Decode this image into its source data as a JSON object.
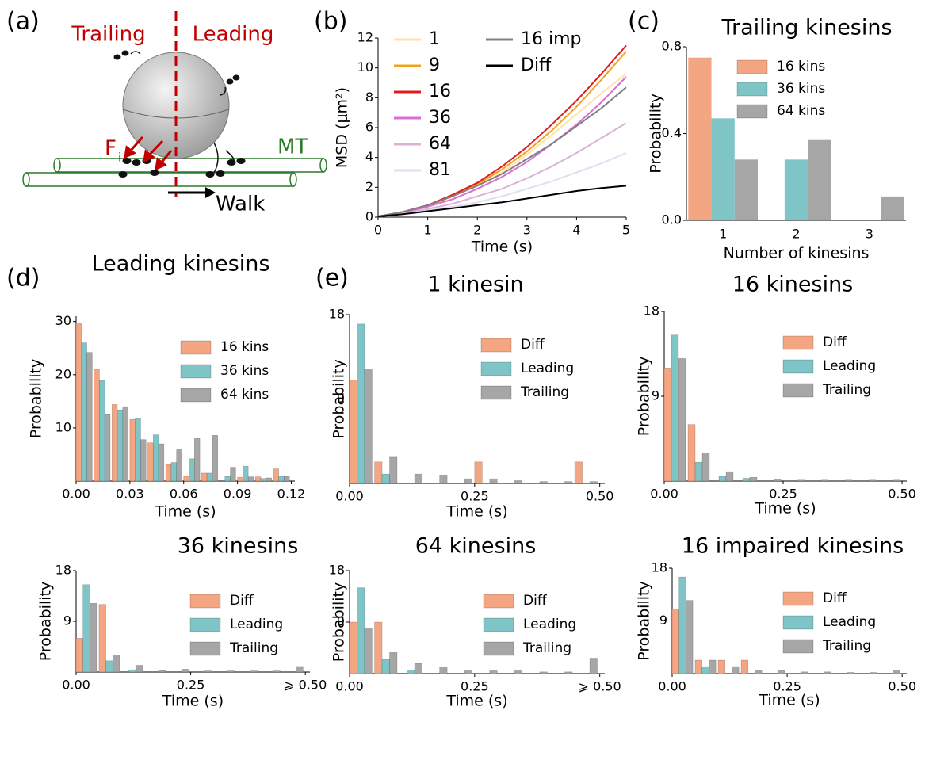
{
  "diagram": {
    "label": "(a)",
    "trailing": "Trailing",
    "leading": "Leading",
    "force": "F",
    "force_sub": "i",
    "mt": "MT",
    "walk": "Walk"
  },
  "chart_data": [
    {
      "type": "line",
      "label": "(b)",
      "x_label": "Time (s)",
      "y_label": "MSD (μm²)",
      "x": [
        0,
        0.5,
        1,
        1.5,
        2,
        2.5,
        3,
        3.5,
        4,
        4.5,
        5
      ],
      "xlim": [
        0,
        5
      ],
      "xticks": [
        0,
        1,
        2,
        3,
        4,
        5
      ],
      "ylim": [
        0,
        12
      ],
      "yticks": [
        0,
        2,
        4,
        6,
        8,
        10,
        12
      ],
      "series": [
        {
          "name": "1",
          "color": "#fde2ad",
          "values": [
            0.05,
            0.35,
            0.75,
            1.4,
            2.1,
            3.0,
            4.2,
            5.5,
            6.9,
            8.3,
            9.6
          ]
        },
        {
          "name": "9",
          "color": "#f0a41c",
          "values": [
            0.05,
            0.35,
            0.75,
            1.4,
            2.2,
            3.2,
            4.4,
            5.8,
            7.4,
            9.2,
            11.1
          ]
        },
        {
          "name": "16",
          "color": "#e31a1c",
          "values": [
            0.05,
            0.35,
            0.8,
            1.5,
            2.3,
            3.4,
            4.7,
            6.2,
            7.8,
            9.6,
            11.5
          ]
        },
        {
          "name": "36",
          "color": "#d86fd2",
          "values": [
            0.05,
            0.3,
            0.7,
            1.2,
            1.9,
            2.7,
            3.7,
            4.9,
            6.2,
            7.7,
            9.4
          ]
        },
        {
          "name": "64",
          "color": "#d9b2d4",
          "values": [
            0.05,
            0.25,
            0.55,
            0.9,
            1.4,
            1.9,
            2.6,
            3.4,
            4.3,
            5.3,
            6.3
          ]
        },
        {
          "name": "81",
          "color": "#e3ddf2",
          "values": [
            0.05,
            0.2,
            0.45,
            0.7,
            1.0,
            1.4,
            1.9,
            2.4,
            3.0,
            3.6,
            4.3
          ]
        },
        {
          "name": "16 imp",
          "color": "#808080",
          "values": [
            0.05,
            0.35,
            0.8,
            1.4,
            2.1,
            2.9,
            3.9,
            4.9,
            6.1,
            7.3,
            8.7
          ]
        },
        {
          "name": "Diff",
          "color": "#000000",
          "values": [
            0.05,
            0.2,
            0.4,
            0.6,
            0.8,
            1.0,
            1.25,
            1.5,
            1.75,
            1.95,
            2.1
          ]
        }
      ]
    },
    {
      "type": "bar",
      "label": "(c)",
      "title": "Trailing kinesins",
      "x_label": "Number of kinesins",
      "y_label": "Probability",
      "categories": [
        "1",
        "2",
        "3"
      ],
      "ylim": [
        0,
        0.8
      ],
      "yticks": [
        {
          "value": 0,
          "label": "0.0"
        },
        0.4,
        0.8
      ],
      "series": [
        {
          "name": "16 kins",
          "color": "#f4a582",
          "values": [
            0.75,
            0,
            0
          ]
        },
        {
          "name": "36 kins",
          "color": "#7fc4c6",
          "values": [
            0.47,
            0.28,
            0
          ]
        },
        {
          "name": "64 kins",
          "color": "#a6a6a6",
          "values": [
            0.28,
            0.37,
            0.11
          ]
        }
      ]
    },
    {
      "type": "histogram",
      "label": "(d)",
      "title": "Leading kinesins",
      "x_label": "Time (s)",
      "y_label": "Probability",
      "bins": [
        0,
        0.01,
        0.02,
        0.03,
        0.04,
        0.05,
        0.06,
        0.07,
        0.08,
        0.09,
        0.1,
        0.11,
        0.12
      ],
      "xlim": [
        0,
        0.122
      ],
      "xticks": [
        {
          "value": 0,
          "label": "0.00"
        },
        0.03,
        0.06,
        0.09,
        0.12
      ],
      "ylim": [
        0,
        31
      ],
      "yticks": [
        10,
        20,
        30
      ],
      "series": [
        {
          "name": "16 kins",
          "color": "#f4a582",
          "values": [
            29.7,
            21,
            14.4,
            11.6,
            7.2,
            3.1,
            0.9,
            1.5,
            0,
            0.7,
            0.8,
            2.3
          ]
        },
        {
          "name": "36 kins",
          "color": "#7fc4c6",
          "values": [
            26,
            18.9,
            13.4,
            11.8,
            8.7,
            3.5,
            4.2,
            1.5,
            0.9,
            2.8,
            0.5,
            0.9
          ]
        },
        {
          "name": "64 kins",
          "color": "#a6a6a6",
          "values": [
            24.2,
            12.5,
            14,
            7.8,
            7.0,
            5.9,
            8.0,
            8.6,
            2.6,
            0.8,
            0.6,
            0.9
          ]
        }
      ]
    },
    {
      "type": "histogram",
      "label": "(e)",
      "title": "1 kinesin",
      "x_label": "Time (s)",
      "y_label": "Probability",
      "bins": [
        0,
        0.05,
        0.1,
        0.15,
        0.2,
        0.25,
        0.3,
        0.35,
        0.4,
        0.45,
        0.5
      ],
      "xlim": [
        0,
        0.51
      ],
      "xticks": [
        {
          "value": 0,
          "label": "0.00"
        },
        0.25,
        {
          "value": 0.5,
          "label": "0.50"
        }
      ],
      "ylim": [
        0,
        18
      ],
      "yticks": [
        9,
        18
      ],
      "series": [
        {
          "name": "Diff",
          "color": "#f4a582",
          "values": [
            11,
            2.3,
            0,
            0,
            0,
            2.3,
            0,
            0,
            0,
            2.3
          ]
        },
        {
          "name": "Leading",
          "color": "#7fc4c6",
          "values": [
            17,
            1,
            0,
            0,
            0,
            0,
            0,
            0,
            0,
            0
          ]
        },
        {
          "name": "Trailing",
          "color": "#a6a6a6",
          "values": [
            12.2,
            2.8,
            1,
            0.9,
            0.5,
            0.5,
            0.3,
            0.2,
            0.2,
            0.2
          ]
        }
      ]
    },
    {
      "type": "histogram",
      "title": "16 kinesins",
      "x_label": "Time (s)",
      "y_label": "Probability",
      "bins": [
        0,
        0.05,
        0.1,
        0.15,
        0.2,
        0.25,
        0.3,
        0.35,
        0.4,
        0.45,
        0.5
      ],
      "xlim": [
        0,
        0.51
      ],
      "xticks": [
        {
          "value": 0,
          "label": "0.00"
        },
        0.25,
        {
          "value": 0.5,
          "label": "0.50"
        }
      ],
      "ylim": [
        0,
        18
      ],
      "yticks": [
        9,
        18
      ],
      "series": [
        {
          "name": "Diff",
          "color": "#f4a582",
          "values": [
            12,
            6,
            0,
            0,
            0,
            0,
            0,
            0,
            0,
            0
          ]
        },
        {
          "name": "Leading",
          "color": "#7fc4c6",
          "values": [
            15.5,
            2,
            0.5,
            0.3,
            0,
            0,
            0,
            0,
            0,
            0
          ]
        },
        {
          "name": "Trailing",
          "color": "#a6a6a6",
          "values": [
            13,
            3,
            1,
            0.4,
            0.2,
            0.1,
            0.1,
            0.1,
            0.1,
            0.1
          ]
        }
      ]
    },
    {
      "type": "histogram",
      "title": "36 kinesins",
      "x_label": "Time (s)",
      "y_label": "Probability",
      "bins": [
        0,
        0.05,
        0.1,
        0.15,
        0.2,
        0.25,
        0.3,
        0.35,
        0.4,
        0.45,
        0.5
      ],
      "xlim": [
        0,
        0.51
      ],
      "xticks": [
        {
          "value": 0,
          "label": "0.00"
        },
        0.25,
        {
          "value": 0.5,
          "label": "⩾ 0.50"
        }
      ],
      "ylim": [
        0,
        18
      ],
      "yticks": [
        9,
        18
      ],
      "series": [
        {
          "name": "Diff",
          "color": "#f4a582",
          "values": [
            6,
            12,
            0,
            0,
            0,
            0,
            0,
            0,
            0,
            0
          ]
        },
        {
          "name": "Leading",
          "color": "#7fc4c6",
          "values": [
            15.5,
            2,
            0.4,
            0,
            0,
            0,
            0,
            0,
            0,
            0
          ]
        },
        {
          "name": "Trailing",
          "color": "#a6a6a6",
          "values": [
            12.2,
            3,
            1.2,
            0.3,
            0.5,
            0.2,
            0.2,
            0.2,
            0.2,
            1
          ]
        }
      ]
    },
    {
      "type": "histogram",
      "title": "64 kinesins",
      "x_label": "Time (s)",
      "y_label": "Probability",
      "bins": [
        0,
        0.05,
        0.1,
        0.15,
        0.2,
        0.25,
        0.3,
        0.35,
        0.4,
        0.45,
        0.5
      ],
      "xlim": [
        0,
        0.51
      ],
      "xticks": [
        {
          "value": 0,
          "label": "0.00"
        },
        0.25,
        {
          "value": 0.5,
          "label": "⩾ 0.50"
        }
      ],
      "ylim": [
        0,
        18
      ],
      "yticks": [
        9,
        18
      ],
      "series": [
        {
          "name": "Diff",
          "color": "#f4a582",
          "values": [
            9,
            9,
            0,
            0,
            0,
            0,
            0,
            0,
            0,
            0
          ]
        },
        {
          "name": "Leading",
          "color": "#7fc4c6",
          "values": [
            15,
            2.5,
            0.6,
            0,
            0,
            0,
            0,
            0,
            0,
            0
          ]
        },
        {
          "name": "Trailing",
          "color": "#a6a6a6",
          "values": [
            8,
            3.7,
            1.8,
            1.2,
            0.5,
            0.5,
            0.5,
            0.3,
            0.3,
            2.7
          ]
        }
      ]
    },
    {
      "type": "histogram",
      "title": "16 impaired kinesins",
      "x_label": "Time (s)",
      "y_label": "Probability",
      "bins": [
        0,
        0.05,
        0.1,
        0.15,
        0.2,
        0.25,
        0.3,
        0.35,
        0.4,
        0.45,
        0.5
      ],
      "xlim": [
        0,
        0.51
      ],
      "xticks": [
        {
          "value": 0,
          "label": "0.00"
        },
        0.25,
        {
          "value": 0.5,
          "label": "0.50"
        }
      ],
      "ylim": [
        0,
        18
      ],
      "yticks": [
        9,
        18
      ],
      "series": [
        {
          "name": "Diff",
          "color": "#f4a582",
          "values": [
            11,
            2.3,
            2.3,
            2.3,
            0,
            0,
            0,
            0,
            0,
            0
          ]
        },
        {
          "name": "Leading",
          "color": "#7fc4c6",
          "values": [
            16.5,
            1.2,
            0,
            0,
            0,
            0,
            0,
            0,
            0,
            0
          ]
        },
        {
          "name": "Trailing",
          "color": "#a6a6a6",
          "values": [
            12.5,
            2.3,
            1.2,
            0.5,
            0.5,
            0.3,
            0.3,
            0.2,
            0.2,
            0.5
          ]
        }
      ]
    }
  ]
}
